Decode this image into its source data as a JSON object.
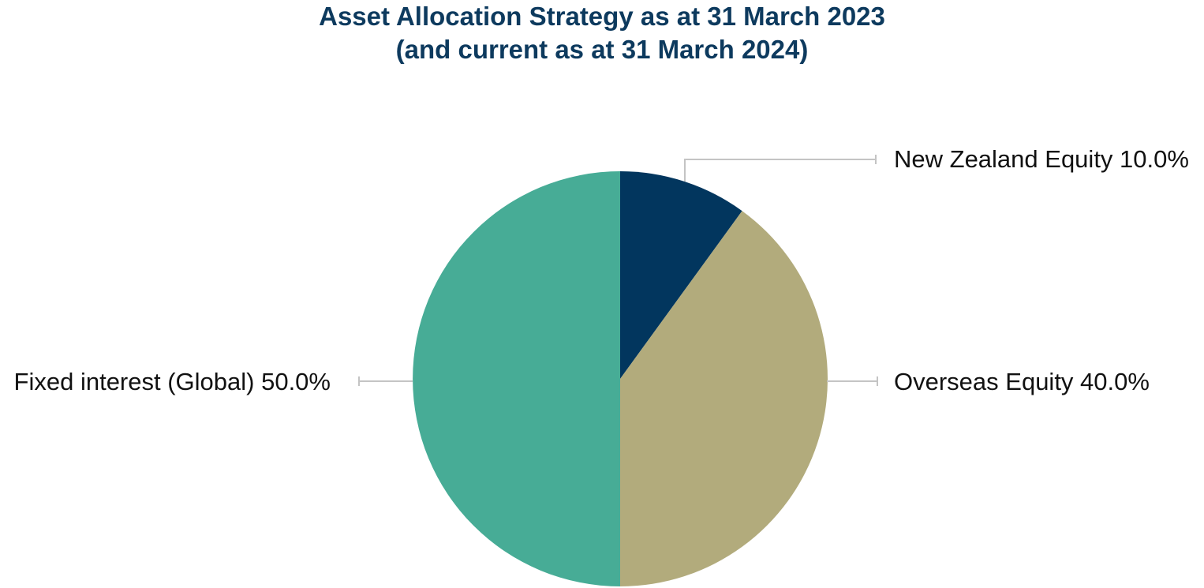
{
  "chart_data": {
    "type": "pie",
    "title": "Asset Allocation Strategy as at 31 March 2023",
    "subtitle": "(and current as at 31 March 2024)",
    "slices": [
      {
        "label": "New Zealand Equity 10.0%",
        "category": "New Zealand Equity",
        "value": 10.0,
        "color": "#02365e"
      },
      {
        "label": "Overseas Equity 40.0%",
        "category": "Overseas Equity",
        "value": 40.0,
        "color": "#b2ab7c"
      },
      {
        "label": "Fixed interest (Global) 50.0%",
        "category": "Fixed interest (Global)",
        "value": 50.0,
        "color": "#47ac96"
      }
    ],
    "start_angle": "12 o'clock",
    "direction": "clockwise",
    "legend": "none",
    "data_labels": "outside with leader lines"
  }
}
